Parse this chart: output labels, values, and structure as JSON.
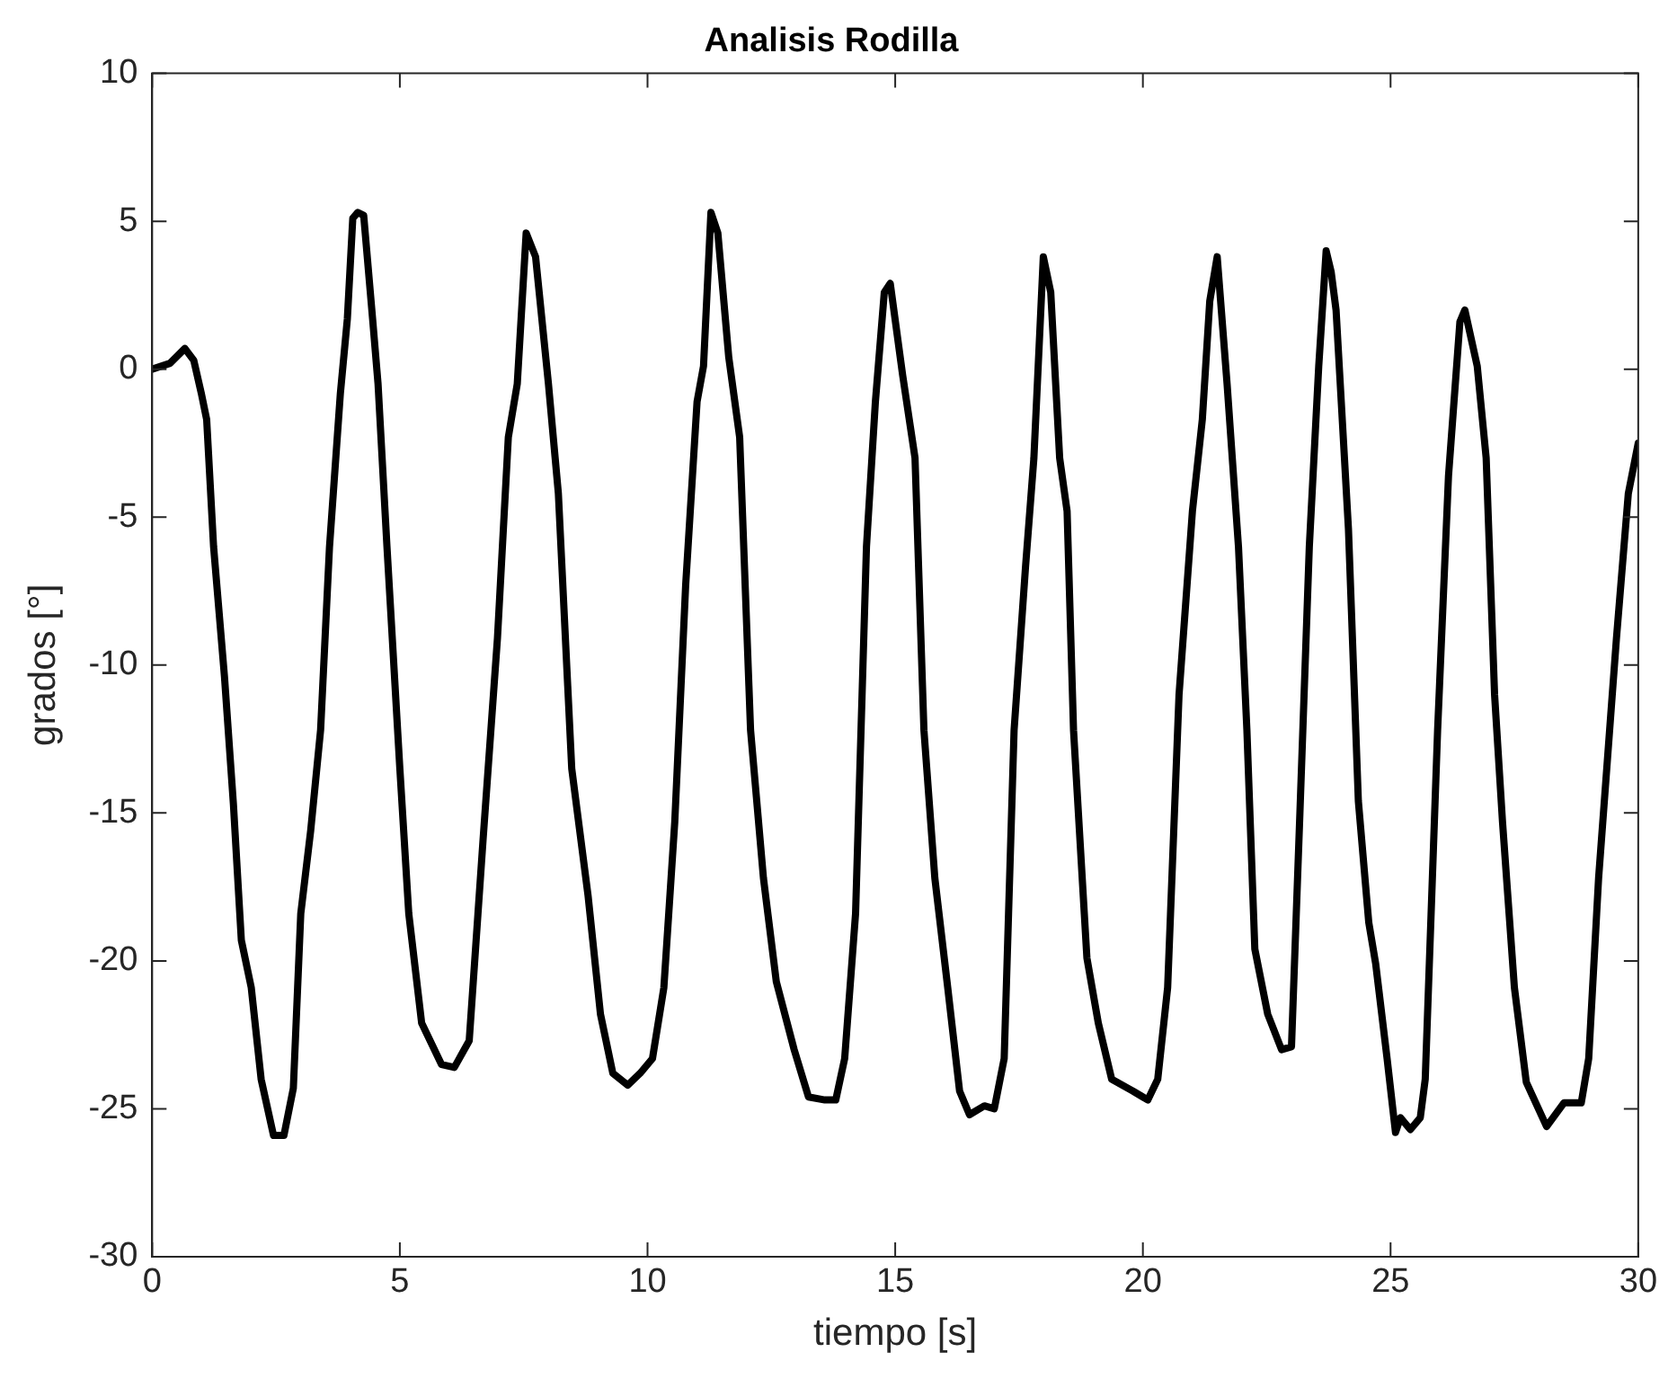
{
  "chart_data": {
    "type": "line",
    "title": "Analisis Rodilla",
    "xlabel": "tiempo [s]",
    "ylabel": "grados [°]",
    "xlim": [
      0,
      30
    ],
    "ylim": [
      -30,
      10
    ],
    "xticks": [
      0,
      5,
      10,
      15,
      20,
      25,
      30
    ],
    "yticks": [
      -30,
      -25,
      -20,
      -15,
      -10,
      -5,
      0,
      5,
      10
    ],
    "grid": false,
    "legend": false,
    "marker": "none",
    "line_style": "solid",
    "series": [
      {
        "color": "#000000",
        "x": [
          0,
          0.36,
          0.66,
          0.84,
          0.99,
          1.1,
          1.24,
          1.46,
          1.64,
          1.8,
          2.0,
          2.2,
          2.45,
          2.66,
          2.85,
          3.0,
          3.2,
          3.4,
          3.58,
          3.8,
          3.94,
          4.05,
          4.15,
          4.27,
          4.45,
          4.56,
          4.74,
          5.0,
          5.18,
          5.44,
          5.84,
          6.1,
          6.4,
          6.68,
          6.97,
          7.19,
          7.37,
          7.55,
          7.74,
          8.0,
          8.2,
          8.47,
          8.8,
          9.05,
          9.3,
          9.6,
          9.85,
          10.1,
          10.33,
          10.55,
          10.77,
          11.0,
          11.13,
          11.28,
          11.42,
          11.64,
          11.86,
          12.08,
          12.34,
          12.6,
          12.96,
          13.25,
          13.58,
          13.8,
          13.98,
          14.2,
          14.42,
          14.6,
          14.78,
          14.9,
          15.15,
          15.4,
          15.58,
          15.8,
          16.06,
          16.3,
          16.5,
          16.8,
          17.0,
          17.2,
          17.4,
          17.63,
          17.8,
          17.99,
          18.14,
          18.32,
          18.47,
          18.6,
          18.87,
          19.1,
          19.37,
          19.8,
          20.1,
          20.3,
          20.5,
          20.73,
          21.0,
          21.2,
          21.35,
          21.5,
          21.7,
          21.93,
          22.1,
          22.26,
          22.52,
          22.8,
          23.0,
          23.17,
          23.36,
          23.55,
          23.7,
          23.8,
          23.9,
          24.15,
          24.35,
          24.56,
          24.7,
          24.93,
          25.1,
          25.2,
          25.4,
          25.6,
          25.7,
          25.95,
          26.17,
          26.4,
          26.5,
          26.75,
          26.93,
          27.1,
          27.26,
          27.5,
          27.74,
          28.15,
          28.5,
          28.65,
          28.85,
          29.0,
          29.2,
          29.56,
          29.8,
          30.0
        ],
        "values": [
          0,
          0.2,
          0.7,
          0.3,
          -0.8,
          -1.7,
          -6,
          -10.4,
          -14.7,
          -19.3,
          -20.9,
          -24,
          -25.9,
          -25.9,
          -24.3,
          -18.4,
          -15.6,
          -12.2,
          -6,
          -0.8,
          1.7,
          5.1,
          5.3,
          5.2,
          1.7,
          -0.5,
          -6,
          -13.5,
          -18.4,
          -22.1,
          -23.5,
          -23.6,
          -22.7,
          -15.9,
          -9.1,
          -2.3,
          -0.5,
          4.6,
          3.8,
          -0.5,
          -4.2,
          -13.5,
          -17.8,
          -21.8,
          -23.8,
          -24.2,
          -23.8,
          -23.3,
          -20.9,
          -15.3,
          -7.3,
          -1.1,
          0.1,
          5.3,
          4.6,
          0.4,
          -2.3,
          -12.2,
          -17.2,
          -20.7,
          -23.0,
          -24.6,
          -24.7,
          -24.7,
          -23.3,
          -18.4,
          -6,
          -1.1,
          2.6,
          2.9,
          -0.2,
          -3,
          -12.2,
          -17.2,
          -20.9,
          -24.4,
          -25.2,
          -24.9,
          -25,
          -23.3,
          -12.2,
          -6.7,
          -3,
          3.8,
          2.6,
          -3,
          -4.8,
          -12.2,
          -19.9,
          -22.1,
          -24,
          -24.4,
          -24.7,
          -24,
          -20.9,
          -11,
          -4.8,
          -1.7,
          2.3,
          3.8,
          -0.5,
          -6,
          -12.2,
          -19.6,
          -21.8,
          -23,
          -22.9,
          -15,
          -6,
          0.1,
          4.0,
          3.3,
          2.0,
          -5.4,
          -14.6,
          -18.7,
          -20.1,
          -23.3,
          -25.8,
          -25.3,
          -25.7,
          -25.3,
          -24,
          -12.2,
          -3.6,
          1.6,
          2.0,
          0.1,
          -3,
          -11,
          -15.3,
          -20.9,
          -24.1,
          -25.6,
          -24.8,
          -24.8,
          -24.8,
          -23.3,
          -17.2,
          -9.1,
          -4.2,
          -2.5
        ]
      }
    ]
  }
}
